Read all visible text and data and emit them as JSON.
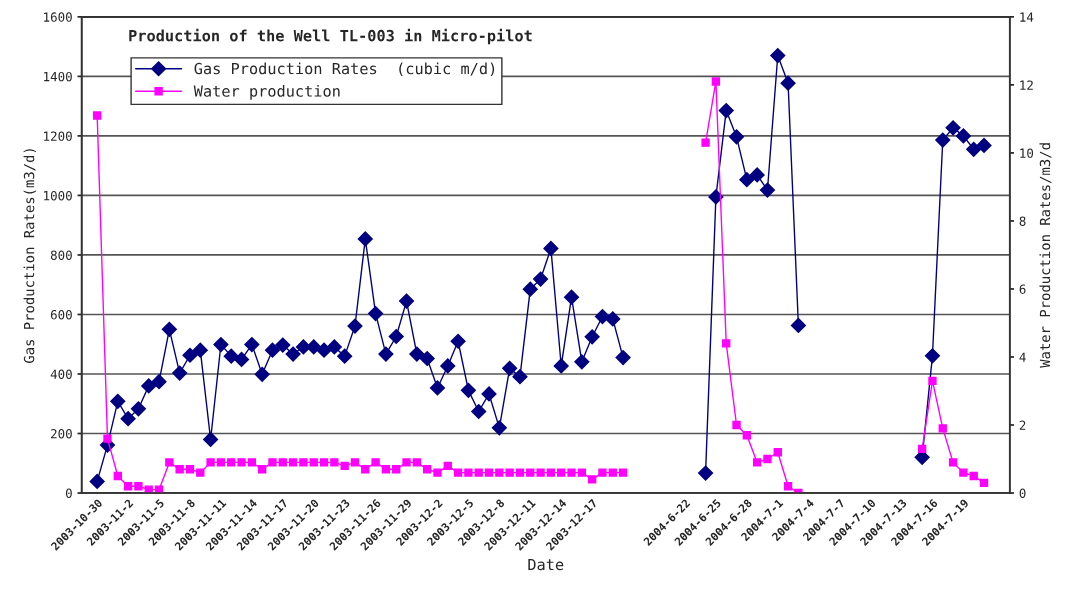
{
  "chart_data": {
    "type": "line",
    "title": "Production of the Well TL-003 in Micro-pilot",
    "xlabel": "Date",
    "ylabel": "Gas Production Rates(m3/d)",
    "y2label": "Water Production Rates/m3/d",
    "categories": [
      null,
      "2003-10-30",
      null,
      null,
      "2003-11-2",
      null,
      null,
      "2003-11-5",
      null,
      null,
      "2003-11-8",
      null,
      null,
      "2003-11-11",
      null,
      null,
      "2003-11-14",
      null,
      null,
      "2003-11-17",
      null,
      null,
      "2003-11-20",
      null,
      null,
      "2003-11-23",
      null,
      null,
      "2003-11-26",
      null,
      null,
      "2003-11-29",
      null,
      null,
      "2003-12-2",
      null,
      null,
      "2003-12-5",
      null,
      null,
      "2003-12-8",
      null,
      null,
      "2003-12-11",
      null,
      null,
      "2003-12-14",
      null,
      null,
      "2003-12-17",
      null,
      null,
      null,
      null,
      null,
      null,
      null,
      null,
      "2004-6-22",
      null,
      null,
      "2004-6-25",
      null,
      null,
      "2004-6-28",
      null,
      null,
      "2004-7-1",
      null,
      null,
      "2004-7-4",
      null,
      null,
      "2004-7-7",
      null,
      null,
      "2004-7-10",
      null,
      null,
      "2004-7-13",
      null,
      null,
      "2004-7-16",
      null,
      null,
      "2004-7-19",
      null,
      null,
      null,
      null
    ],
    "series": [
      {
        "name": "Gas Production Rates  (cubic m/d)",
        "color": "#000080",
        "marker": "diamond",
        "values": [
          null,
          39,
          161,
          308,
          250,
          283,
          360,
          374,
          550,
          403,
          463,
          480,
          180,
          499,
          460,
          449,
          499,
          399,
          480,
          497,
          467,
          491,
          491,
          480,
          491,
          460,
          561,
          854,
          603,
          467,
          526,
          645,
          467,
          452,
          353,
          427,
          510,
          345,
          274,
          333,
          219,
          419,
          391,
          685,
          719,
          822,
          427,
          658,
          441,
          525,
          593,
          585,
          455,
          null,
          null,
          null,
          null,
          null,
          null,
          null,
          67,
          995,
          1285,
          1197,
          1053,
          1069,
          1018,
          1470,
          1377,
          563,
          null,
          null,
          null,
          null,
          null,
          null,
          null,
          null,
          null,
          null,
          null,
          120,
          461,
          1186,
          1227,
          1200,
          1155,
          1168,
          null,
          null
        ]
      },
      {
        "name": "Water production",
        "color": "#ff00ff",
        "marker": "square",
        "axis": "y2",
        "values": [
          null,
          11.1,
          1.6,
          0.5,
          0.2,
          0.2,
          0.1,
          0.1,
          0.9,
          0.7,
          0.7,
          0.6,
          0.9,
          0.9,
          0.9,
          0.9,
          0.9,
          0.7,
          0.9,
          0.9,
          0.9,
          0.9,
          0.9,
          0.9,
          0.9,
          0.8,
          0.9,
          0.7,
          0.9,
          0.7,
          0.7,
          0.9,
          0.9,
          0.7,
          0.6,
          0.8,
          0.6,
          0.6,
          0.6,
          0.6,
          0.6,
          0.6,
          0.6,
          0.6,
          0.6,
          0.6,
          0.6,
          0.6,
          0.6,
          0.4,
          0.6,
          0.6,
          0.6,
          null,
          null,
          null,
          null,
          null,
          null,
          null,
          10.3,
          12.1,
          4.4,
          2.0,
          1.7,
          0.9,
          1.0,
          1.2,
          0.2,
          0.0,
          null,
          null,
          null,
          null,
          null,
          null,
          null,
          null,
          null,
          null,
          null,
          1.3,
          3.3,
          1.9,
          0.9,
          0.6,
          0.5,
          0.3,
          null,
          null
        ]
      }
    ],
    "ylim": [
      0,
      1600
    ],
    "yticks": [
      0,
      200,
      400,
      600,
      800,
      1000,
      1200,
      1400,
      1600
    ],
    "y2lim": [
      0,
      14
    ],
    "y2ticks": [
      0,
      2,
      4,
      6,
      8,
      10,
      12,
      14
    ],
    "grid": "y",
    "legend": "top left",
    "line_style": "solid"
  }
}
